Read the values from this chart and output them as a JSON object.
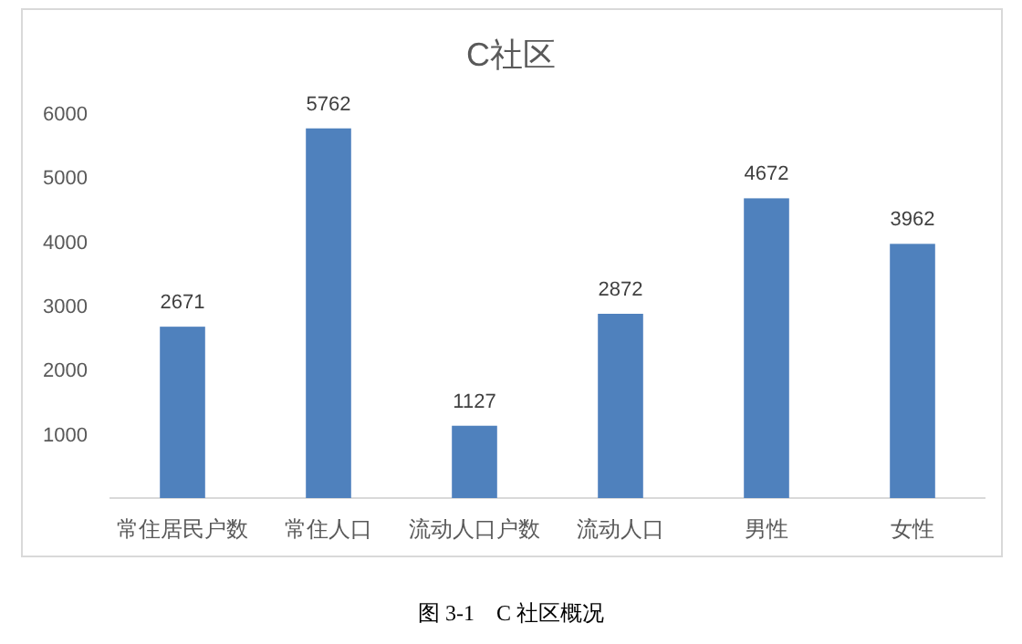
{
  "chart_data": {
    "type": "bar",
    "title": "C社区",
    "categories": [
      "常住居民户数",
      "常住人口",
      "流动人口户数",
      "流动人口",
      "男性",
      "女性"
    ],
    "values": [
      2671,
      5762,
      1127,
      2872,
      4672,
      3962
    ],
    "color": "#4f81bd",
    "ylim": [
      0,
      6000
    ],
    "yticks": [
      1000,
      2000,
      3000,
      4000,
      5000,
      6000
    ],
    "grid": false,
    "data_labels": true,
    "annotations": [
      "图 3-1　C 社区概况"
    ]
  }
}
